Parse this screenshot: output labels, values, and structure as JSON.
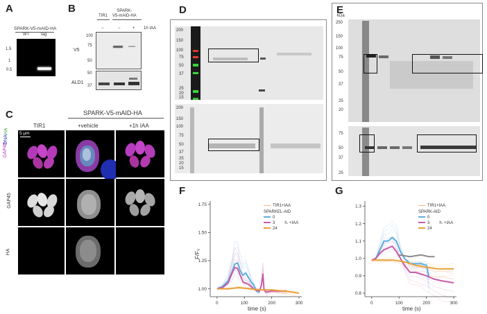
{
  "panels": {
    "A": {
      "label": "A",
      "title": "SPARK-V5-mAID-HA",
      "lanes": [
        "WT",
        "tag"
      ],
      "marker_kb": [
        "1.5",
        "1",
        "0.5"
      ]
    },
    "B": {
      "label": "B",
      "group_tir1": "TIR1",
      "group_spark": "SPARK-\nV5-mAID-HA",
      "treat_signs": [
        "−",
        "−",
        "+"
      ],
      "treat_label": "1h IAA",
      "v5_label": "V5",
      "ald1_label": "ALD1",
      "v5_markers": [
        "100",
        "75",
        "50"
      ],
      "ald1_markers": [
        "50",
        "37"
      ]
    },
    "C": {
      "label": "C",
      "header": "SPARK-V5-mAID-HA",
      "cols": [
        "TIR1",
        "+vehicle",
        "+1h IAA"
      ],
      "scale": "5 μm",
      "merge_labels": [
        "GAP45",
        "DNA",
        "HA"
      ],
      "row_labels": [
        "GAP45",
        "HA"
      ]
    },
    "D": {
      "label": "D",
      "top_markers": [
        "200",
        "150",
        "100",
        "75",
        "50",
        "37",
        "25",
        "20",
        "15",
        "10"
      ],
      "bottom_markers": [
        "200",
        "150",
        "100",
        "75",
        "50",
        "37",
        "25",
        "20",
        "15"
      ]
    },
    "E": {
      "label": "E",
      "unit": "kDa",
      "top_markers": [
        "250",
        "150",
        "100",
        "75",
        "50",
        "37",
        "25",
        "20"
      ],
      "bottom_markers": [
        "75",
        "50",
        "37",
        "25"
      ]
    },
    "F": {
      "label": "F",
      "legend_ctrl": "TIR1+IAA",
      "legend_group": "SPARKEL-AID",
      "legend_items": [
        "0",
        "3",
        "24"
      ],
      "legend_unit": "h. +IAA"
    },
    "G": {
      "label": "G",
      "legend_ctrl": "TIR1+IAA",
      "legend_group": "SPARK-AID",
      "legend_items": [
        "0",
        "3",
        "24"
      ],
      "legend_unit": "h. +IAA"
    }
  },
  "chart_data": [
    {
      "type": "line",
      "panel": "F",
      "xlabel": "time (s)",
      "ylabel": "F/F₀",
      "xlim": [
        -25,
        310
      ],
      "ylim": [
        0.93,
        1.78
      ],
      "xticks": [
        0,
        100,
        200,
        300
      ],
      "yticks": [
        1.0,
        1.25,
        1.5,
        1.75
      ],
      "colors": {
        "ctrl": "#f3b67a",
        "0": "#5aaee0",
        "3": "#c75ba8",
        "24": "#e8a13a"
      },
      "series": [
        {
          "name": "0",
          "x": [
            0,
            20,
            40,
            55,
            65,
            75,
            85,
            95,
            105,
            115,
            125,
            135,
            145,
            155
          ],
          "y": [
            1.0,
            1.02,
            1.07,
            1.15,
            1.22,
            1.23,
            1.16,
            1.12,
            1.14,
            1.1,
            1.06,
            1.03,
            0.98,
            0.97
          ]
        },
        {
          "name": "3",
          "x": [
            0,
            20,
            40,
            55,
            65,
            75,
            85,
            95,
            105,
            115,
            125,
            140,
            155,
            162,
            168,
            172,
            180,
            200,
            230,
            255
          ],
          "y": [
            1.0,
            1.01,
            1.05,
            1.14,
            1.19,
            1.18,
            1.12,
            1.06,
            1.05,
            1.04,
            1.02,
            0.99,
            0.98,
            1.03,
            1.13,
            0.99,
            0.97,
            0.98,
            0.98,
            0.98
          ]
        },
        {
          "name": "24",
          "x": [
            0,
            40,
            80,
            120,
            160,
            200,
            240,
            280,
            300
          ],
          "y": [
            1.0,
            1.0,
            1.01,
            1.0,
            0.99,
            0.99,
            0.98,
            0.97,
            0.96
          ]
        }
      ]
    },
    {
      "type": "line",
      "panel": "G",
      "xlabel": "time (s)",
      "ylabel": "",
      "xlim": [
        -25,
        310
      ],
      "ylim": [
        0.78,
        1.33
      ],
      "xticks": [
        0,
        100,
        200,
        300
      ],
      "yticks": [
        0.8,
        0.9,
        1.0,
        1.1,
        1.2,
        1.3
      ],
      "colors": {
        "ctrl": "#f3b67a",
        "0": "#5aaee0",
        "3": "#c75ba8",
        "24": "#e8a13a"
      },
      "series": [
        {
          "name": "0",
          "x": [
            0,
            15,
            30,
            45,
            60,
            75,
            90,
            105,
            120,
            140,
            160,
            180,
            200,
            210
          ],
          "y": [
            0.99,
            1.0,
            1.05,
            1.1,
            1.1,
            1.12,
            1.1,
            1.04,
            1.0,
            0.97,
            0.97,
            0.97,
            0.96,
            0.89
          ]
        },
        {
          "name": "3",
          "x": [
            0,
            15,
            30,
            45,
            60,
            75,
            90,
            105,
            120,
            140,
            160,
            180,
            200,
            230,
            260,
            300
          ],
          "y": [
            0.99,
            1.0,
            1.03,
            1.05,
            1.06,
            1.07,
            1.04,
            1.0,
            0.96,
            0.92,
            0.92,
            0.91,
            0.9,
            0.88,
            0.87,
            0.86
          ]
        },
        {
          "name": "24",
          "x": [
            0,
            40,
            80,
            120,
            160,
            200,
            240,
            300
          ],
          "y": [
            0.99,
            0.99,
            0.99,
            0.98,
            0.96,
            0.95,
            0.94,
            0.94
          ]
        },
        {
          "name": "gray",
          "x": [
            100,
            140,
            180,
            210,
            230
          ],
          "y": [
            1.02,
            1.01,
            1.02,
            1.01,
            1.01
          ]
        }
      ]
    }
  ]
}
